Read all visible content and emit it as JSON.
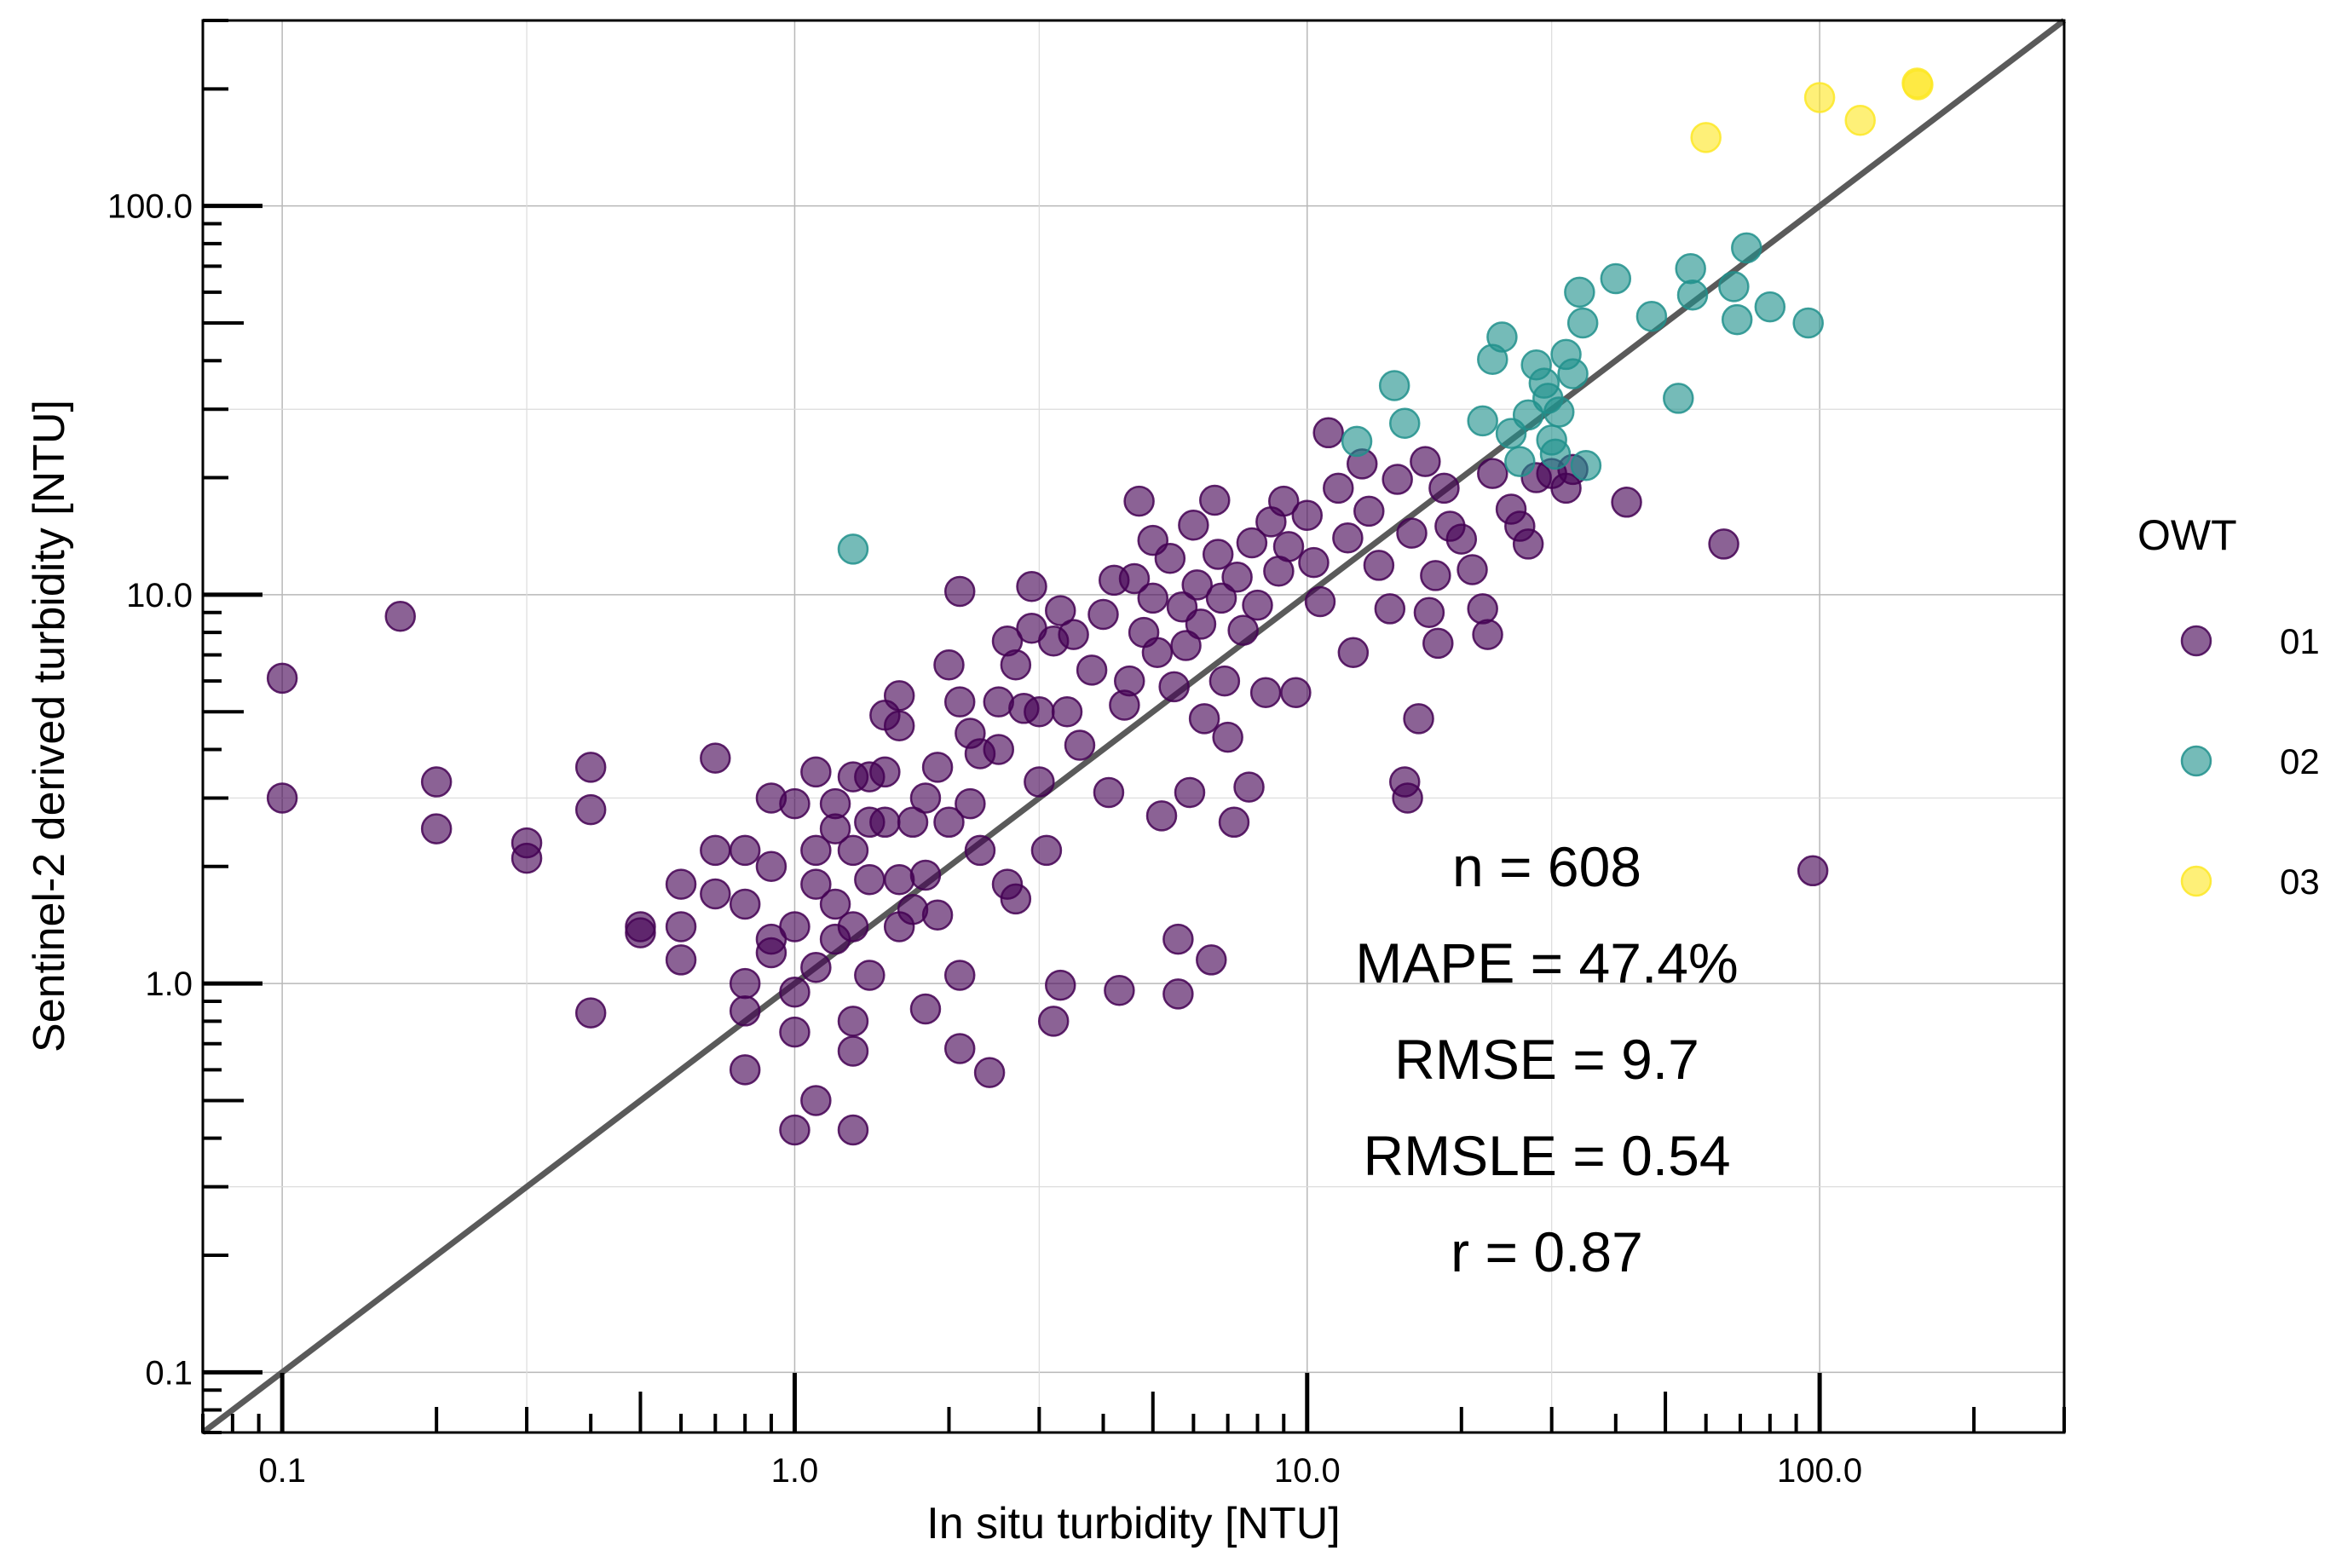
{
  "chart_data": {
    "type": "scatter",
    "xlabel": "In situ turbidity [NTU]",
    "ylabel": "Sentinel-2 derived turbidity [NTU]",
    "xscale": "log",
    "yscale": "log",
    "xlim": [
      0.07,
      300
    ],
    "ylim": [
      0.07,
      300
    ],
    "xticks": [
      {
        "value": 0.1,
        "label": "0.1"
      },
      {
        "value": 1,
        "label": "1.0"
      },
      {
        "value": 10,
        "label": "10.0"
      },
      {
        "value": 100,
        "label": "100.0"
      }
    ],
    "yticks": [
      {
        "value": 0.1,
        "label": "0.1"
      },
      {
        "value": 1,
        "label": "1.0"
      },
      {
        "value": 10,
        "label": "10.0"
      },
      {
        "value": 100,
        "label": "100.0"
      }
    ],
    "grid": true,
    "identity_line": true,
    "legend": {
      "title": "OWT",
      "position": "right",
      "items": [
        {
          "label": "01",
          "color": "#440154"
        },
        {
          "label": "02",
          "color": "#21918c"
        },
        {
          "label": "03",
          "color": "#fde725"
        }
      ]
    },
    "annotations": [
      "n = 608",
      "MAPE = 47.4%",
      "RMSE = 9.7",
      "RMSLE = 0.54",
      "r = 0.87"
    ],
    "series": [
      {
        "name": "01",
        "color": "#440154",
        "points": [
          [
            0.1,
            6.1
          ],
          [
            0.1,
            3.0
          ],
          [
            0.17,
            8.8
          ],
          [
            0.2,
            3.3
          ],
          [
            0.2,
            2.5
          ],
          [
            0.3,
            2.3
          ],
          [
            0.3,
            2.1
          ],
          [
            0.4,
            3.6
          ],
          [
            0.4,
            2.8
          ],
          [
            0.4,
            0.84
          ],
          [
            0.5,
            1.4
          ],
          [
            0.5,
            1.35
          ],
          [
            0.6,
            1.8
          ],
          [
            0.6,
            1.4
          ],
          [
            0.6,
            1.15
          ],
          [
            0.7,
            3.8
          ],
          [
            0.7,
            1.7
          ],
          [
            0.7,
            2.2
          ],
          [
            0.8,
            2.2
          ],
          [
            0.8,
            1.6
          ],
          [
            0.8,
            1.0
          ],
          [
            0.8,
            0.85
          ],
          [
            0.8,
            0.6
          ],
          [
            0.9,
            3.0
          ],
          [
            0.9,
            2.0
          ],
          [
            0.9,
            1.3
          ],
          [
            0.9,
            1.2
          ],
          [
            1.0,
            2.9
          ],
          [
            1.0,
            1.4
          ],
          [
            1.0,
            0.95
          ],
          [
            1.0,
            0.75
          ],
          [
            1.0,
            0.42
          ],
          [
            1.1,
            3.5
          ],
          [
            1.1,
            2.2
          ],
          [
            1.1,
            1.8
          ],
          [
            1.1,
            1.1
          ],
          [
            1.1,
            0.5
          ],
          [
            1.2,
            2.9
          ],
          [
            1.2,
            2.5
          ],
          [
            1.2,
            1.6
          ],
          [
            1.2,
            1.3
          ],
          [
            1.3,
            3.4
          ],
          [
            1.3,
            2.2
          ],
          [
            1.3,
            1.4
          ],
          [
            1.3,
            0.8
          ],
          [
            1.3,
            0.67
          ],
          [
            1.3,
            0.42
          ],
          [
            1.4,
            3.4
          ],
          [
            1.4,
            2.6
          ],
          [
            1.4,
            1.85
          ],
          [
            1.4,
            1.05
          ],
          [
            1.5,
            4.9
          ],
          [
            1.5,
            3.5
          ],
          [
            1.5,
            2.6
          ],
          [
            1.6,
            5.5
          ],
          [
            1.6,
            4.6
          ],
          [
            1.6,
            1.85
          ],
          [
            1.6,
            1.4
          ],
          [
            1.7,
            2.6
          ],
          [
            1.7,
            1.55
          ],
          [
            1.8,
            3.0
          ],
          [
            1.8,
            1.9
          ],
          [
            1.8,
            0.86
          ],
          [
            1.9,
            3.6
          ],
          [
            1.9,
            1.5
          ],
          [
            2.0,
            6.6
          ],
          [
            2.0,
            2.6
          ],
          [
            2.1,
            10.2
          ],
          [
            2.1,
            5.3
          ],
          [
            2.1,
            1.05
          ],
          [
            2.1,
            0.68
          ],
          [
            2.2,
            4.4
          ],
          [
            2.2,
            2.9
          ],
          [
            2.3,
            3.9
          ],
          [
            2.3,
            2.2
          ],
          [
            2.4,
            0.59
          ],
          [
            2.5,
            5.3
          ],
          [
            2.5,
            4.0
          ],
          [
            2.6,
            7.6
          ],
          [
            2.6,
            1.8
          ],
          [
            2.7,
            6.6
          ],
          [
            2.7,
            1.65
          ],
          [
            2.8,
            5.1
          ],
          [
            2.9,
            10.5
          ],
          [
            2.9,
            8.2
          ],
          [
            3.0,
            5.0
          ],
          [
            3.0,
            3.3
          ],
          [
            3.1,
            2.2
          ],
          [
            3.2,
            7.6
          ],
          [
            3.2,
            0.8
          ],
          [
            3.3,
            9.1
          ],
          [
            3.3,
            0.99
          ],
          [
            3.4,
            5.0
          ],
          [
            3.5,
            7.9
          ],
          [
            3.6,
            4.1
          ],
          [
            3.8,
            6.4
          ],
          [
            4.0,
            8.9
          ],
          [
            4.1,
            3.1
          ],
          [
            4.2,
            10.9
          ],
          [
            4.3,
            0.96
          ],
          [
            4.4,
            5.2
          ],
          [
            4.5,
            6.0
          ],
          [
            4.6,
            11.0
          ],
          [
            4.7,
            17.4
          ],
          [
            4.8,
            8.0
          ],
          [
            5.0,
            13.8
          ],
          [
            5.0,
            9.8
          ],
          [
            5.1,
            7.1
          ],
          [
            5.2,
            2.7
          ],
          [
            5.4,
            12.4
          ],
          [
            5.5,
            5.8
          ],
          [
            5.6,
            1.3
          ],
          [
            5.6,
            0.94
          ],
          [
            5.7,
            9.3
          ],
          [
            5.8,
            7.4
          ],
          [
            5.9,
            3.1
          ],
          [
            6.0,
            15.1
          ],
          [
            6.1,
            10.6
          ],
          [
            6.2,
            8.4
          ],
          [
            6.3,
            4.8
          ],
          [
            6.5,
            1.15
          ],
          [
            6.6,
            17.5
          ],
          [
            6.7,
            12.7
          ],
          [
            6.8,
            9.8
          ],
          [
            6.9,
            6.0
          ],
          [
            7.0,
            4.3
          ],
          [
            7.2,
            2.6
          ],
          [
            7.3,
            11.1
          ],
          [
            7.5,
            8.1
          ],
          [
            7.7,
            3.2
          ],
          [
            7.8,
            13.6
          ],
          [
            8.0,
            9.4
          ],
          [
            8.3,
            5.6
          ],
          [
            8.5,
            15.4
          ],
          [
            8.8,
            11.5
          ],
          [
            9.0,
            17.4
          ],
          [
            9.2,
            13.3
          ],
          [
            9.5,
            5.6
          ],
          [
            10.0,
            16.0
          ],
          [
            10.3,
            12.1
          ],
          [
            10.6,
            9.6
          ],
          [
            11.0,
            26.1
          ],
          [
            11.5,
            18.8
          ],
          [
            12.0,
            14.0
          ],
          [
            12.3,
            7.1
          ],
          [
            12.8,
            21.7
          ],
          [
            13.2,
            16.4
          ],
          [
            13.8,
            11.9
          ],
          [
            14.5,
            9.2
          ],
          [
            15.0,
            19.8
          ],
          [
            15.5,
            3.3
          ],
          [
            15.7,
            3.0
          ],
          [
            16.0,
            14.4
          ],
          [
            16.5,
            4.8
          ],
          [
            17.0,
            22.0
          ],
          [
            17.3,
            9.0
          ],
          [
            17.8,
            11.2
          ],
          [
            18.0,
            7.5
          ],
          [
            18.5,
            18.8
          ],
          [
            19.0,
            15.0
          ],
          [
            20.0,
            13.9
          ],
          [
            21.0,
            11.6
          ],
          [
            22.0,
            9.2
          ],
          [
            22.5,
            7.9
          ],
          [
            23.0,
            20.5
          ],
          [
            25.0,
            16.6
          ],
          [
            26.0,
            15.0
          ],
          [
            27.0,
            13.5
          ],
          [
            28.0,
            20.0
          ],
          [
            30.0,
            20.5
          ],
          [
            32.0,
            18.8
          ],
          [
            33.0,
            21.0
          ],
          [
            42.0,
            17.3
          ],
          [
            65.0,
            13.5
          ],
          [
            97.0,
            1.95
          ]
        ]
      },
      {
        "name": "02",
        "color": "#21918c",
        "points": [
          [
            1.3,
            13.1
          ],
          [
            12.5,
            24.8
          ],
          [
            14.8,
            34.5
          ],
          [
            15.5,
            27.6
          ],
          [
            22.0,
            28.0
          ],
          [
            23.0,
            40.3
          ],
          [
            24.0,
            46.0
          ],
          [
            25.0,
            26.0
          ],
          [
            26.0,
            22.0
          ],
          [
            27.0,
            29.0
          ],
          [
            28.0,
            39.0
          ],
          [
            29.0,
            35.0
          ],
          [
            29.5,
            32.0
          ],
          [
            30.0,
            25.0
          ],
          [
            30.5,
            23.0
          ],
          [
            31.0,
            29.5
          ],
          [
            32.0,
            41.5
          ],
          [
            33.0,
            37.0
          ],
          [
            34.0,
            60.0
          ],
          [
            34.5,
            50.0
          ],
          [
            35.0,
            21.5
          ],
          [
            40.0,
            65.0
          ],
          [
            47.0,
            52.0
          ],
          [
            53.0,
            32.0
          ],
          [
            56.0,
            69.0
          ],
          [
            56.5,
            59.0
          ],
          [
            68.0,
            62.0
          ],
          [
            69.0,
            51.0
          ],
          [
            72.0,
            78.0
          ],
          [
            80.0,
            55.0
          ],
          [
            95.0,
            50.0
          ]
        ]
      },
      {
        "name": "03",
        "color": "#fde725",
        "points": [
          [
            60.0,
            150.0
          ],
          [
            100.0,
            190.0
          ],
          [
            120.0,
            166.0
          ],
          [
            155.0,
            207.0
          ],
          [
            155.5,
            205.0
          ]
        ]
      }
    ]
  }
}
